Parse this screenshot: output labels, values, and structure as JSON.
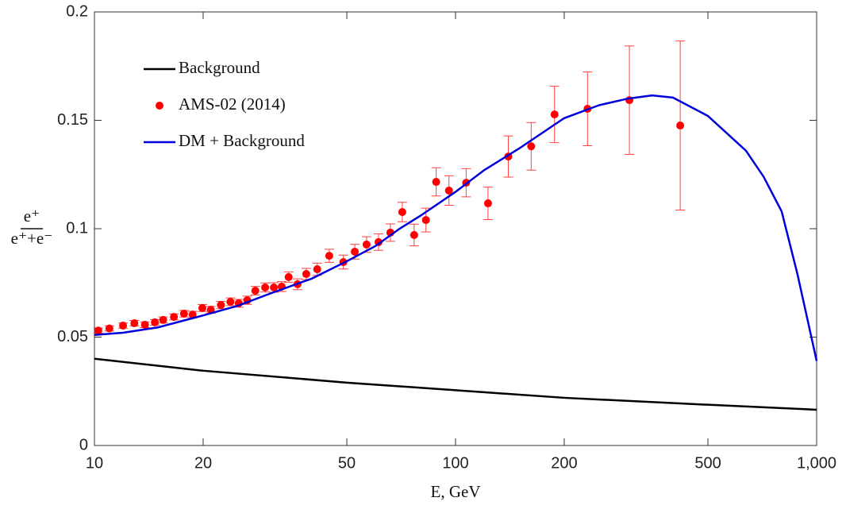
{
  "chart_data": {
    "type": "line",
    "x_label": "E, GeV",
    "y_label": {
      "numerator": "e⁺",
      "denominator": "e⁺+e⁻"
    },
    "xscale": "log",
    "xlim": [
      10,
      1000
    ],
    "ylim": [
      0,
      0.2
    ],
    "xticks": [
      10,
      20,
      50,
      100,
      200,
      500,
      {
        "value": 1000,
        "label": "1,000"
      }
    ],
    "yticks": [
      0,
      0.05,
      0.1,
      0.15,
      0.2
    ],
    "legend": "upper left",
    "series": [
      {
        "name": "Background",
        "type": "line",
        "color": "#000000",
        "x": [
          10,
          20,
          50,
          100,
          200,
          500,
          1000
        ],
        "values": [
          0.04,
          0.0345,
          0.029,
          0.0255,
          0.022,
          0.0188,
          0.0165
        ]
      },
      {
        "name": "AMS-02 (2014)",
        "type": "scatter",
        "color": "#ff0000",
        "x": [
          10.25,
          11.0,
          12.0,
          12.9,
          13.8,
          14.7,
          15.5,
          16.6,
          17.7,
          18.7,
          19.9,
          21.0,
          22.4,
          23.8,
          25.1,
          26.5,
          27.9,
          29.7,
          31.4,
          33.0,
          34.5,
          36.5,
          38.6,
          41.4,
          44.7,
          48.9,
          52.6,
          56.7,
          61.2,
          66.0,
          71.2,
          76.8,
          82.8,
          88.4,
          95.9,
          107,
          123,
          140,
          162,
          188,
          232,
          303,
          419
        ],
        "values": [
          0.053,
          0.054,
          0.0553,
          0.0564,
          0.0557,
          0.0568,
          0.0579,
          0.0593,
          0.0608,
          0.0604,
          0.0634,
          0.0626,
          0.0648,
          0.0663,
          0.0656,
          0.067,
          0.0714,
          0.0729,
          0.0729,
          0.0733,
          0.0777,
          0.0744,
          0.0791,
          0.0813,
          0.0875,
          0.0846,
          0.0894,
          0.0927,
          0.0938,
          0.0982,
          0.1077,
          0.0971,
          0.104,
          0.1216,
          0.1176,
          0.1212,
          0.1117,
          0.1333,
          0.138,
          0.1527,
          0.1553,
          0.1593,
          0.1476
        ],
        "errors": [
          0.0012,
          0.0012,
          0.0012,
          0.0013,
          0.0013,
          0.0013,
          0.0014,
          0.0014,
          0.0015,
          0.0015,
          0.0016,
          0.0016,
          0.0017,
          0.0018,
          0.0018,
          0.0019,
          0.002,
          0.0021,
          0.0022,
          0.0023,
          0.0024,
          0.0025,
          0.0026,
          0.0028,
          0.003,
          0.0032,
          0.0034,
          0.0036,
          0.0038,
          0.004,
          0.0045,
          0.005,
          0.0055,
          0.0065,
          0.0068,
          0.0065,
          0.0075,
          0.0095,
          0.011,
          0.013,
          0.017,
          0.025,
          0.039
        ]
      },
      {
        "name": "DM + Background",
        "type": "line",
        "color": "#0000dd",
        "x": [
          10,
          12,
          15,
          20,
          25,
          30,
          40,
          50,
          60,
          70,
          80,
          100,
          120,
          150,
          200,
          250,
          300,
          350,
          400,
          500,
          637,
          713,
          800,
          885,
          1000
        ],
        "values": [
          0.051,
          0.052,
          0.0545,
          0.06,
          0.0645,
          0.0695,
          0.077,
          0.085,
          0.092,
          0.1,
          0.106,
          0.117,
          0.127,
          0.137,
          0.151,
          0.157,
          0.16,
          0.1615,
          0.1605,
          0.152,
          0.136,
          0.124,
          0.108,
          0.079,
          0.039
        ]
      }
    ]
  }
}
